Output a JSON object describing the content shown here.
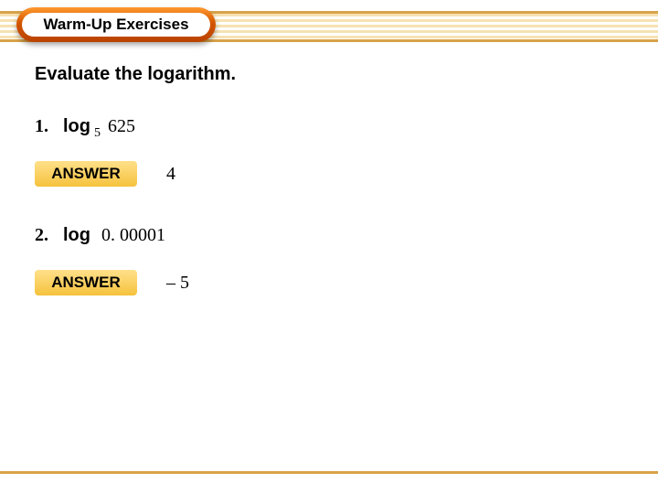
{
  "colors": {
    "band_border": "#d9a34a",
    "band_stripe_a": "#f6e2b3",
    "band_stripe_b": "#ffffff",
    "pill_gradient_top": "#ff9a2e",
    "pill_gradient_mid": "#d35400",
    "pill_gradient_bottom": "#b84300",
    "answer_gradient_top": "#ffe08a",
    "answer_gradient_bottom": "#f5c23d",
    "text": "#000000",
    "page_bg": "#ffffff"
  },
  "header": {
    "title": "Warm-Up Exercises"
  },
  "instruction": "Evaluate the logarithm.",
  "problems": [
    {
      "number": "1.",
      "log_label": "log",
      "subscript": "5",
      "operand": "625",
      "answer_label": "ANSWER",
      "answer_value": "4"
    },
    {
      "number": "2.",
      "log_label": "log",
      "subscript": "",
      "operand": "0. 00001",
      "answer_label": "ANSWER",
      "answer_value": "– 5"
    }
  ]
}
